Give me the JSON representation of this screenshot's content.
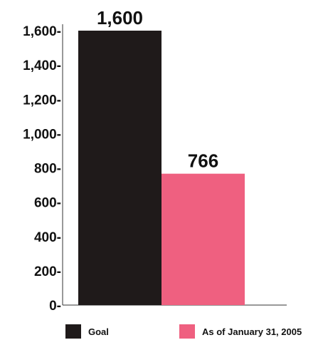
{
  "chart_data": {
    "type": "bar",
    "categories": [
      "Goal",
      "As of January 31, 2005"
    ],
    "values": [
      1600,
      766
    ],
    "value_labels": [
      "1,600",
      "766"
    ],
    "y_ticks": [
      0,
      200,
      400,
      600,
      800,
      1000,
      1200,
      1400,
      1600
    ],
    "y_tick_labels": [
      "0-",
      "200-",
      "400-",
      "600-",
      "800-",
      "1,000-",
      "1,200-",
      "1,400-",
      "1,600-"
    ],
    "ylim": [
      0,
      1600
    ],
    "grid": false,
    "legend_position": "bottom",
    "colors": [
      "#1f1a1a",
      "#ef6080"
    ],
    "title": "",
    "xlabel": "",
    "ylabel": ""
  },
  "legend": {
    "items": [
      {
        "label": "Goal",
        "color": "#1f1a1a"
      },
      {
        "label": "As of January 31, 2005",
        "color": "#ef6080"
      }
    ]
  }
}
